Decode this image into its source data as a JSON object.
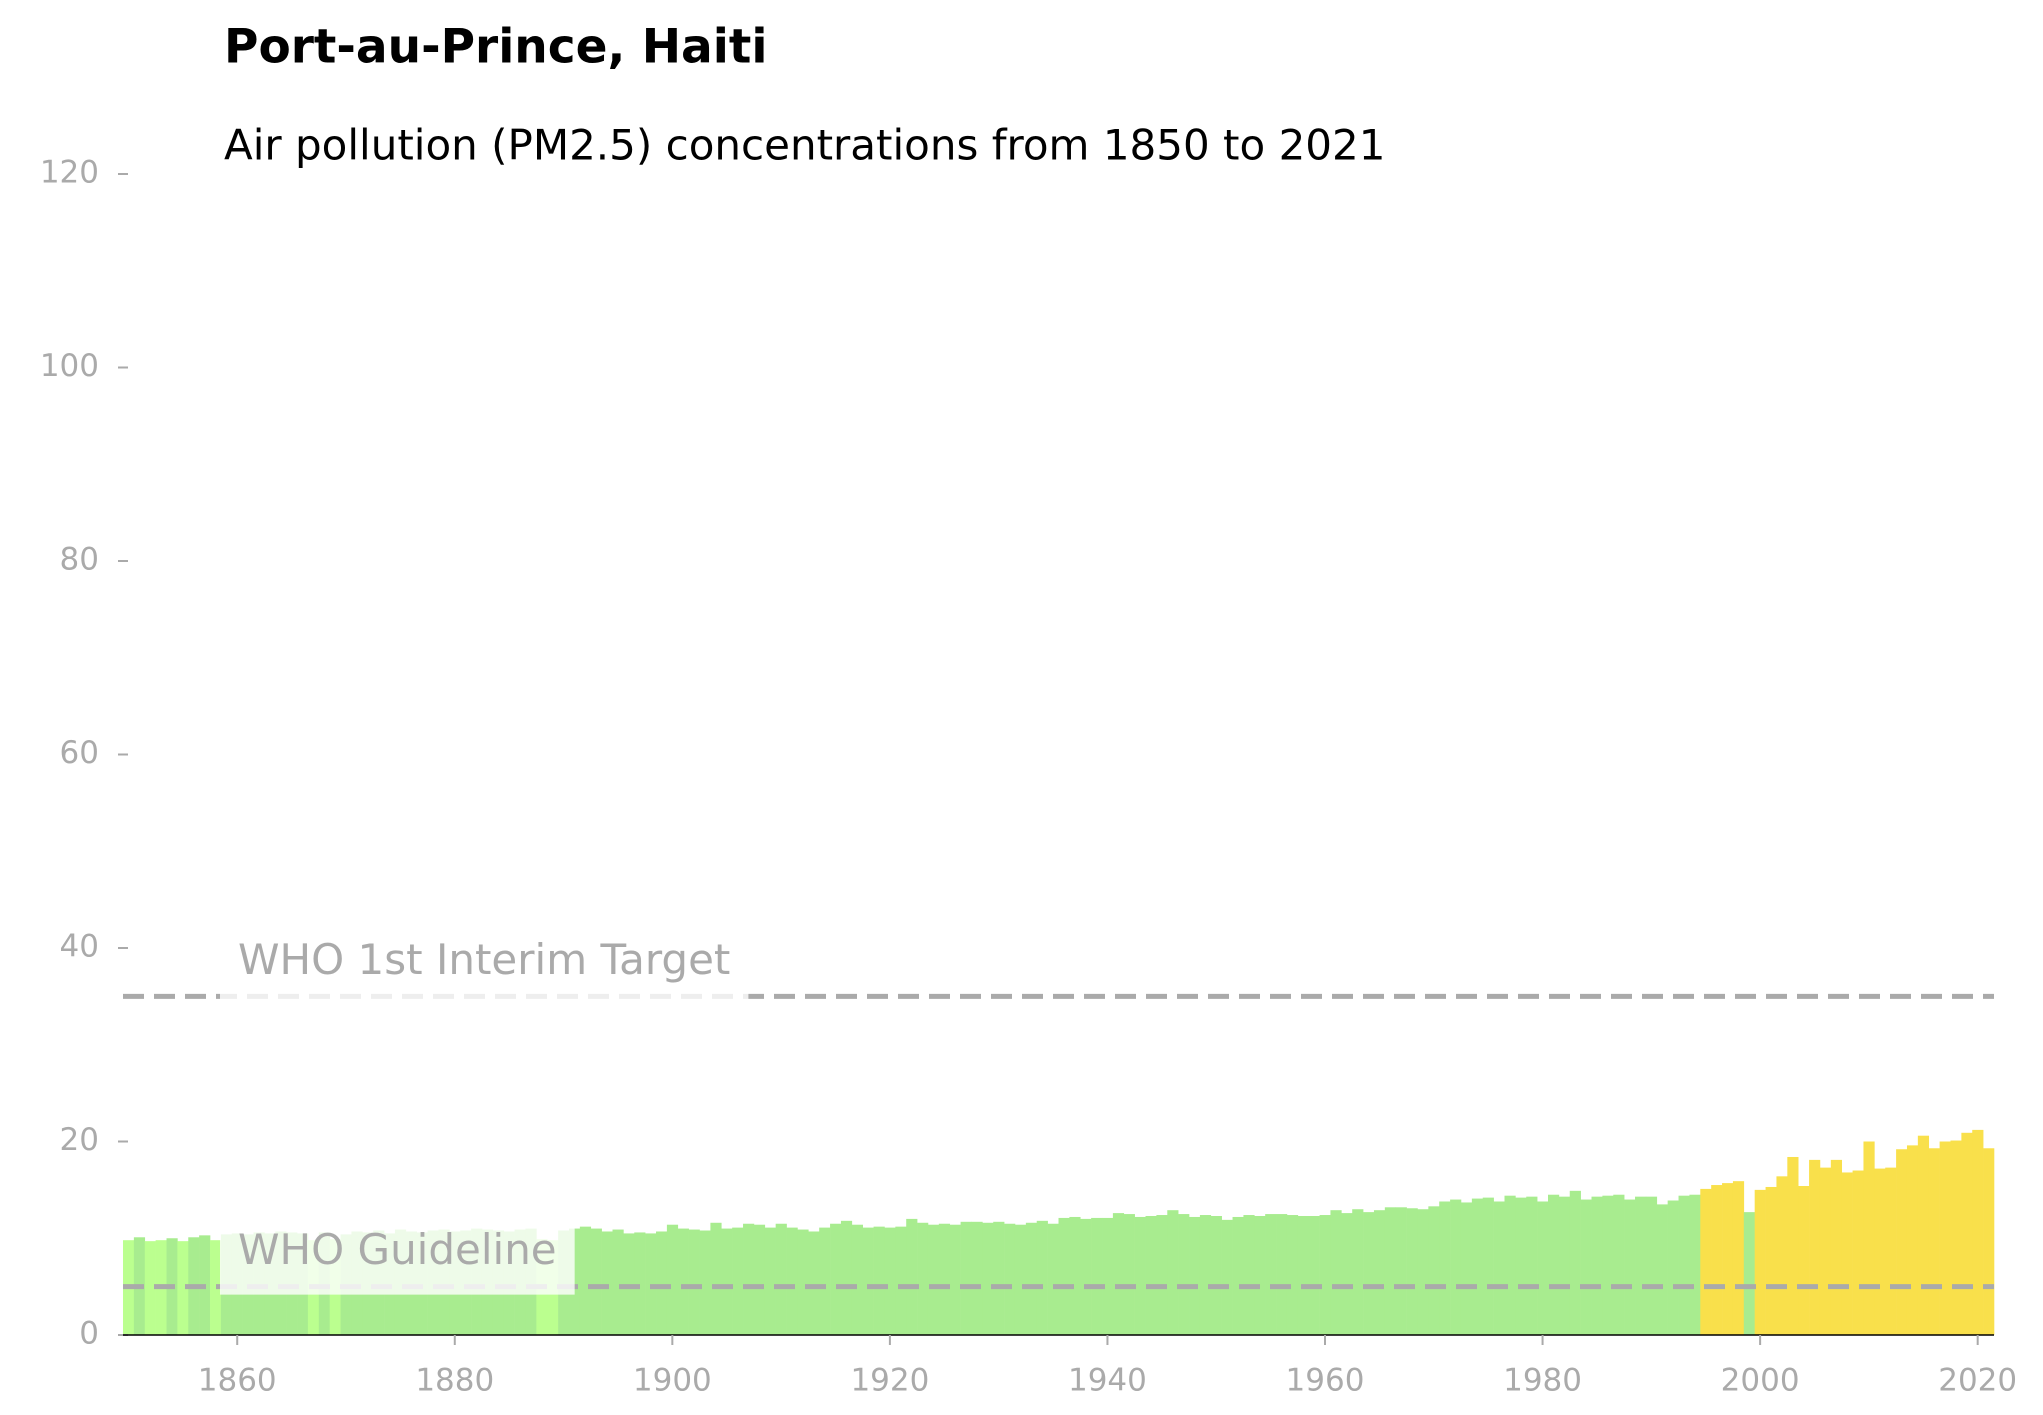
{
  "chart_data": {
    "type": "bar",
    "title": "Port-au-Prince, Haiti",
    "subtitle": "Air pollution (PM2.5) concentrations from 1850 to 2021",
    "x": [
      1850,
      1851,
      1852,
      1853,
      1854,
      1855,
      1856,
      1857,
      1858,
      1859,
      1860,
      1861,
      1862,
      1863,
      1864,
      1865,
      1866,
      1867,
      1868,
      1869,
      1870,
      1871,
      1872,
      1873,
      1874,
      1875,
      1876,
      1877,
      1878,
      1879,
      1880,
      1881,
      1882,
      1883,
      1884,
      1885,
      1886,
      1887,
      1888,
      1889,
      1890,
      1891,
      1892,
      1893,
      1894,
      1895,
      1896,
      1897,
      1898,
      1899,
      1900,
      1901,
      1902,
      1903,
      1904,
      1905,
      1906,
      1907,
      1908,
      1909,
      1910,
      1911,
      1912,
      1913,
      1914,
      1915,
      1916,
      1917,
      1918,
      1919,
      1920,
      1921,
      1922,
      1923,
      1924,
      1925,
      1926,
      1927,
      1928,
      1929,
      1930,
      1931,
      1932,
      1933,
      1934,
      1935,
      1936,
      1937,
      1938,
      1939,
      1940,
      1941,
      1942,
      1943,
      1944,
      1945,
      1946,
      1947,
      1948,
      1949,
      1950,
      1951,
      1952,
      1953,
      1954,
      1955,
      1956,
      1957,
      1958,
      1959,
      1960,
      1961,
      1962,
      1963,
      1964,
      1965,
      1966,
      1967,
      1968,
      1969,
      1970,
      1971,
      1972,
      1973,
      1974,
      1975,
      1976,
      1977,
      1978,
      1979,
      1980,
      1981,
      1982,
      1983,
      1984,
      1985,
      1986,
      1987,
      1988,
      1989,
      1990,
      1991,
      1992,
      1993,
      1994,
      1995,
      1996,
      1997,
      1998,
      1999,
      2000,
      2001,
      2002,
      2003,
      2004,
      2005,
      2006,
      2007,
      2008,
      2009,
      2010,
      2011,
      2012,
      2013,
      2014,
      2015,
      2016,
      2017,
      2018,
      2019,
      2020,
      2021
    ],
    "values": [
      9.8,
      10.1,
      9.7,
      9.8,
      10.0,
      9.7,
      10.1,
      10.3,
      9.8,
      10.4,
      10.5,
      10.4,
      10.6,
      10.5,
      10.7,
      10.6,
      10.5,
      9.8,
      10.6,
      9.9,
      10.4,
      10.7,
      10.6,
      10.8,
      10.5,
      10.9,
      10.7,
      10.6,
      10.8,
      10.9,
      10.7,
      10.8,
      11.0,
      10.9,
      10.8,
      10.7,
      10.9,
      11.0,
      9.9,
      9.8,
      10.8,
      11.0,
      11.2,
      11.0,
      10.7,
      10.9,
      10.5,
      10.6,
      10.5,
      10.7,
      11.4,
      11.0,
      10.9,
      10.8,
      11.6,
      11.0,
      11.1,
      11.5,
      11.4,
      11.1,
      11.5,
      11.1,
      10.9,
      10.7,
      11.1,
      11.5,
      11.8,
      11.4,
      11.1,
      11.2,
      11.1,
      11.2,
      12.0,
      11.6,
      11.4,
      11.5,
      11.4,
      11.7,
      11.7,
      11.6,
      11.7,
      11.5,
      11.4,
      11.6,
      11.8,
      11.5,
      12.1,
      12.2,
      12.0,
      12.1,
      12.1,
      12.6,
      12.5,
      12.2,
      12.3,
      12.4,
      12.9,
      12.5,
      12.2,
      12.4,
      12.3,
      11.9,
      12.2,
      12.4,
      12.3,
      12.5,
      12.5,
      12.4,
      12.3,
      12.3,
      12.4,
      12.9,
      12.6,
      13.0,
      12.7,
      12.9,
      13.2,
      13.2,
      13.1,
      13.0,
      13.3,
      13.8,
      14.0,
      13.7,
      14.1,
      14.2,
      13.8,
      14.4,
      14.2,
      14.3,
      13.8,
      14.5,
      14.3,
      14.9,
      14.0,
      14.3,
      14.4,
      14.5,
      14.0,
      14.3,
      14.3,
      13.5,
      13.9,
      14.4,
      14.5,
      15.1,
      15.5,
      15.7,
      15.9,
      12.7,
      15.0,
      15.3,
      16.4,
      18.4,
      15.4,
      18.1,
      17.3,
      18.1,
      16.8,
      17.0,
      20.0,
      17.2,
      17.3,
      19.2,
      19.6,
      20.6,
      19.3,
      20.0,
      20.1,
      20.9,
      21.2,
      19.3
    ],
    "colors": [
      "#bbff8f",
      "#a8ec8f",
      "#bbff8f",
      "#bbff8f",
      "#a8ec8f",
      "#bbff8f",
      "#a8ec8f",
      "#a8ec8f",
      "#bbff8f",
      "#a8ec8f",
      "#a8ec8f",
      "#a8ec8f",
      "#a8ec8f",
      "#a8ec8f",
      "#a8ec8f",
      "#a8ec8f",
      "#a8ec8f",
      "#bbff8f",
      "#a8ec8f",
      "#bbff8f",
      "#a8ec8f",
      "#a8ec8f",
      "#a8ec8f",
      "#a8ec8f",
      "#a8ec8f",
      "#a8ec8f",
      "#a8ec8f",
      "#a8ec8f",
      "#a8ec8f",
      "#a8ec8f",
      "#a8ec8f",
      "#a8ec8f",
      "#a8ec8f",
      "#a8ec8f",
      "#a8ec8f",
      "#a8ec8f",
      "#a8ec8f",
      "#a8ec8f",
      "#bbff8f",
      "#bbff8f",
      "#a8ec8f",
      "#a8ec8f",
      "#a8ec8f",
      "#a8ec8f",
      "#a8ec8f",
      "#a8ec8f",
      "#a8ec8f",
      "#a8ec8f",
      "#a8ec8f",
      "#a8ec8f",
      "#a8ec8f",
      "#a8ec8f",
      "#a8ec8f",
      "#a8ec8f",
      "#a8ec8f",
      "#a8ec8f",
      "#a8ec8f",
      "#a8ec8f",
      "#a8ec8f",
      "#a8ec8f",
      "#a8ec8f",
      "#a8ec8f",
      "#a8ec8f",
      "#a8ec8f",
      "#a8ec8f",
      "#a8ec8f",
      "#a8ec8f",
      "#a8ec8f",
      "#a8ec8f",
      "#a8ec8f",
      "#a8ec8f",
      "#a8ec8f",
      "#a8ec8f",
      "#a8ec8f",
      "#a8ec8f",
      "#a8ec8f",
      "#a8ec8f",
      "#a8ec8f",
      "#a8ec8f",
      "#a8ec8f",
      "#a8ec8f",
      "#a8ec8f",
      "#a8ec8f",
      "#a8ec8f",
      "#a8ec8f",
      "#a8ec8f",
      "#a8ec8f",
      "#a8ec8f",
      "#a8ec8f",
      "#a8ec8f",
      "#a8ec8f",
      "#a8ec8f",
      "#a8ec8f",
      "#a8ec8f",
      "#a8ec8f",
      "#a8ec8f",
      "#a8ec8f",
      "#a8ec8f",
      "#a8ec8f",
      "#a8ec8f",
      "#a8ec8f",
      "#a8ec8f",
      "#a8ec8f",
      "#a8ec8f",
      "#a8ec8f",
      "#a8ec8f",
      "#a8ec8f",
      "#a8ec8f",
      "#a8ec8f",
      "#a8ec8f",
      "#a8ec8f",
      "#a8ec8f",
      "#a8ec8f",
      "#a8ec8f",
      "#a8ec8f",
      "#a8ec8f",
      "#a8ec8f",
      "#a8ec8f",
      "#a8ec8f",
      "#a8ec8f",
      "#a8ec8f",
      "#a8ec8f",
      "#a8ec8f",
      "#a8ec8f",
      "#a8ec8f",
      "#a8ec8f",
      "#a8ec8f",
      "#a8ec8f",
      "#a8ec8f",
      "#a8ec8f",
      "#a8ec8f",
      "#a8ec8f",
      "#a8ec8f",
      "#a8ec8f",
      "#a8ec8f",
      "#a8ec8f",
      "#a8ec8f",
      "#a8ec8f",
      "#a8ec8f",
      "#a8ec8f",
      "#a8ec8f",
      "#a8ec8f",
      "#a8ec8f",
      "#a8ec8f",
      "#a8ec8f",
      "#f9e04b",
      "#f9e04b",
      "#f9e04b",
      "#f9e04b",
      "#a8ec8f",
      "#f9e04b",
      "#f9e04b",
      "#f9e04b",
      "#f9e04b",
      "#f9e04b",
      "#f9e04b",
      "#f9e04b",
      "#f9e04b",
      "#f9e04b",
      "#f9e04b",
      "#f9e04b",
      "#f9e04b",
      "#f9e04b",
      "#f9e04b",
      "#f9e04b",
      "#f9e04b",
      "#f9e04b",
      "#f9e04b",
      "#f9e04b",
      "#f9e04b",
      "#f9e04b",
      "#f9e04b"
    ],
    "hlines": [
      {
        "value": 35,
        "label": "WHO 1st Interim Target",
        "color": "#aaaaaa"
      },
      {
        "value": 5,
        "label": "WHO Guideline",
        "color": "#aaaaaa"
      }
    ],
    "xlim": [
      1849.5,
      2021.5
    ],
    "xticks": [
      1860,
      1880,
      1900,
      1920,
      1940,
      1960,
      1980,
      2000,
      2020
    ],
    "ylim": [
      0,
      120
    ],
    "yticks": [
      0,
      20,
      40,
      60,
      80,
      100,
      120
    ]
  }
}
